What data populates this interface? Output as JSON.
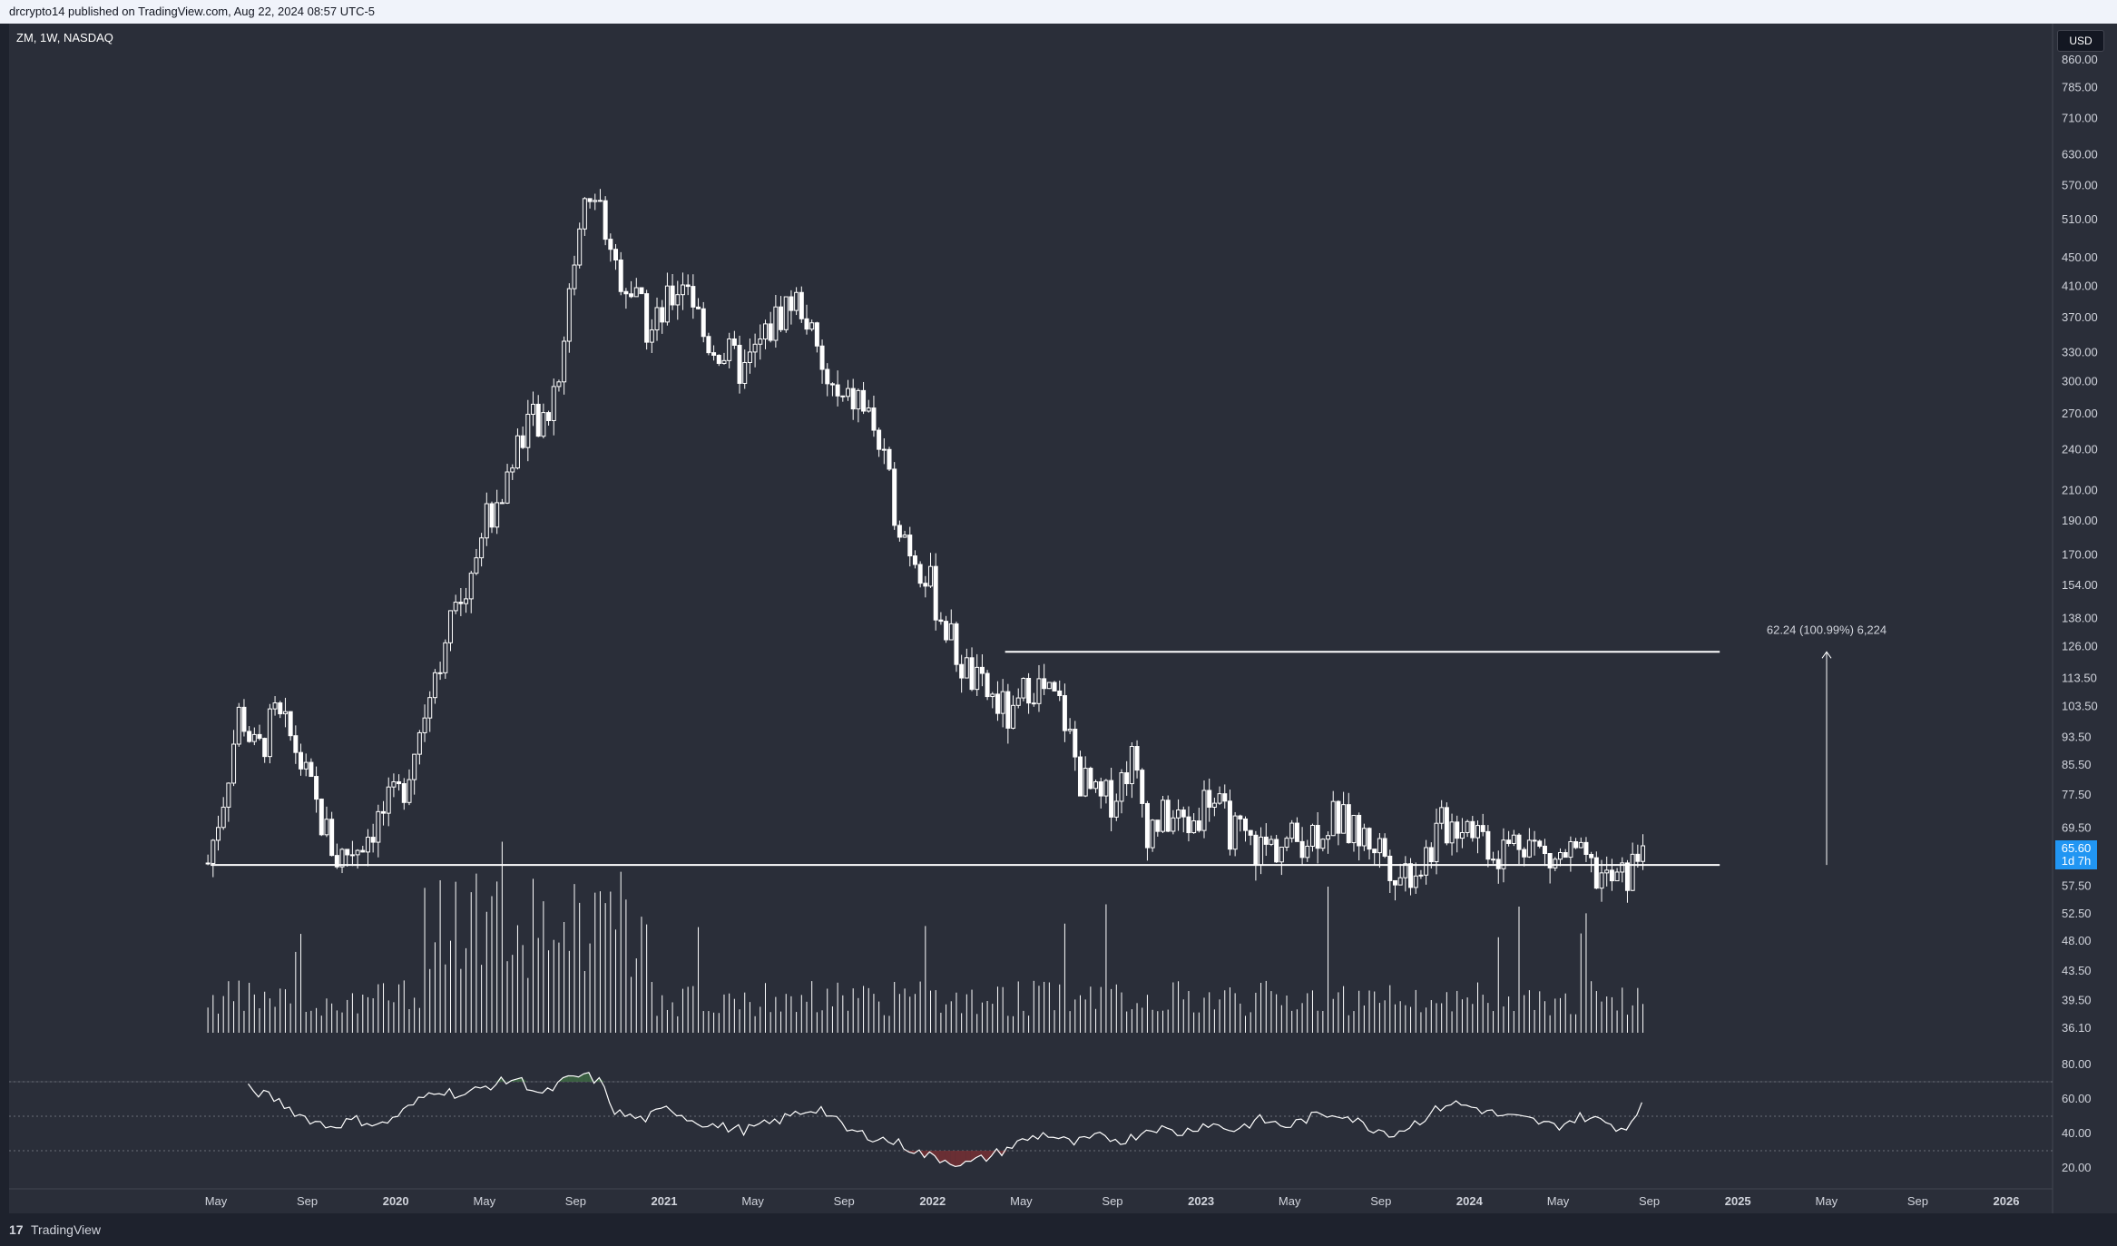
{
  "header": {
    "published_text": "drcrypto14 published on TradingView.com, Aug 22, 2024 08:57 UTC-5"
  },
  "symbol": {
    "label": "ZM, 1W, NASDAQ"
  },
  "currency": "USD",
  "footer": {
    "logo": "17",
    "brand": "TradingView"
  },
  "colors": {
    "background": "#2a2e39",
    "candle": "#ffffff",
    "rsi_overbought_fill": "#3e6b43",
    "rsi_oversold_fill": "#7a2f33",
    "price_tag": "#2962ff",
    "accent": "#2196f3"
  },
  "chart_data": {
    "type": "candlestick",
    "symbol": "ZM",
    "interval": "1W",
    "exchange": "NASDAQ",
    "scale": "log",
    "price_axis_ticks": [
      "860.00",
      "785.00",
      "710.00",
      "630.00",
      "570.00",
      "510.00",
      "450.00",
      "410.00",
      "370.00",
      "330.00",
      "300.00",
      "270.00",
      "240.00",
      "210.00",
      "190.00",
      "170.00",
      "154.00",
      "138.00",
      "126.00",
      "113.50",
      "103.50",
      "93.50",
      "85.50",
      "77.50",
      "69.50",
      "57.50",
      "52.50",
      "48.00",
      "43.50",
      "39.50",
      "36.10"
    ],
    "time_axis_ticks": [
      "May",
      "Sep",
      "2020",
      "May",
      "Sep",
      "2021",
      "May",
      "Sep",
      "2022",
      "May",
      "Sep",
      "2023",
      "May",
      "Sep",
      "2024",
      "May",
      "Sep",
      "2025",
      "May",
      "Sep",
      "2026"
    ],
    "time_axis_dates": [
      2019.33,
      2019.67,
      2020.0,
      2020.33,
      2020.67,
      2021.0,
      2021.33,
      2021.67,
      2022.0,
      2022.33,
      2022.67,
      2023.0,
      2023.33,
      2023.67,
      2024.0,
      2024.33,
      2024.67,
      2025.0,
      2025.33,
      2025.67,
      2026.0
    ],
    "last_price": {
      "value": "65.60",
      "countdown": "1d 7h"
    },
    "price_path": [
      [
        2019.3,
        62
      ],
      [
        2019.36,
        78
      ],
      [
        2019.42,
        103
      ],
      [
        2019.48,
        88
      ],
      [
        2019.55,
        100
      ],
      [
        2019.62,
        92
      ],
      [
        2019.7,
        75
      ],
      [
        2019.78,
        63
      ],
      [
        2019.86,
        66
      ],
      [
        2019.94,
        72
      ],
      [
        2020.02,
        78
      ],
      [
        2020.1,
        100
      ],
      [
        2020.17,
        125
      ],
      [
        2020.25,
        150
      ],
      [
        2020.33,
        190
      ],
      [
        2020.4,
        210
      ],
      [
        2020.48,
        265
      ],
      [
        2020.55,
        255
      ],
      [
        2020.62,
        330
      ],
      [
        2020.67,
        470
      ],
      [
        2020.72,
        560
      ],
      [
        2020.76,
        530
      ],
      [
        2020.82,
        440
      ],
      [
        2020.88,
        400
      ],
      [
        2020.95,
        350
      ],
      [
        2021.02,
        390
      ],
      [
        2021.08,
        430
      ],
      [
        2021.15,
        345
      ],
      [
        2021.22,
        330
      ],
      [
        2021.3,
        310
      ],
      [
        2021.38,
        350
      ],
      [
        2021.46,
        390
      ],
      [
        2021.52,
        385
      ],
      [
        2021.58,
        310
      ],
      [
        2021.66,
        275
      ],
      [
        2021.72,
        285
      ],
      [
        2021.78,
        260
      ],
      [
        2021.84,
        210
      ],
      [
        2021.9,
        180
      ],
      [
        2021.97,
        162
      ],
      [
        2022.03,
        140
      ],
      [
        2022.1,
        120
      ],
      [
        2022.17,
        110
      ],
      [
        2022.24,
        105
      ],
      [
        2022.3,
        98
      ],
      [
        2022.36,
        113
      ],
      [
        2022.42,
        108
      ],
      [
        2022.48,
        103
      ],
      [
        2022.55,
        82
      ],
      [
        2022.62,
        75
      ],
      [
        2022.68,
        78
      ],
      [
        2022.74,
        88
      ],
      [
        2022.8,
        70
      ],
      [
        2022.88,
        72
      ],
      [
        2022.96,
        70
      ],
      [
        2023.03,
        78
      ],
      [
        2023.1,
        70
      ],
      [
        2023.2,
        65
      ],
      [
        2023.3,
        66
      ],
      [
        2023.4,
        68
      ],
      [
        2023.5,
        72
      ],
      [
        2023.58,
        68
      ],
      [
        2023.66,
        66
      ],
      [
        2023.74,
        60
      ],
      [
        2023.82,
        62
      ],
      [
        2023.9,
        70
      ],
      [
        2024.0,
        72
      ],
      [
        2024.1,
        64
      ],
      [
        2024.2,
        68
      ],
      [
        2024.3,
        62
      ],
      [
        2024.38,
        64
      ],
      [
        2024.46,
        60
      ],
      [
        2024.54,
        58
      ],
      [
        2024.6,
        60
      ],
      [
        2024.64,
        65.6
      ]
    ],
    "support_line": {
      "price": 61.6,
      "start": 2019.31,
      "end": 2025.0
    },
    "resistance_line": {
      "price": 123.8,
      "start": 2022.27,
      "end": 2025.0
    },
    "measure": {
      "label": "62.24 (100.99%) 6,224",
      "change": 62.24,
      "percent": 100.99,
      "ticks": 6224
    },
    "volume_note": "volume bars",
    "rsi": {
      "ticks": [
        "80.00",
        "60.00",
        "40.00",
        "20.00"
      ],
      "levels": [
        70,
        50,
        30
      ],
      "path": [
        [
          2019.45,
          66
        ],
        [
          2019.55,
          60
        ],
        [
          2019.65,
          50
        ],
        [
          2019.75,
          44
        ],
        [
          2019.85,
          48
        ],
        [
          2019.95,
          45
        ],
        [
          2020.05,
          55
        ],
        [
          2020.15,
          66
        ],
        [
          2020.25,
          62
        ],
        [
          2020.35,
          68
        ],
        [
          2020.45,
          72
        ],
        [
          2020.55,
          62
        ],
        [
          2020.62,
          70
        ],
        [
          2020.7,
          74
        ],
        [
          2020.76,
          70
        ],
        [
          2020.82,
          52
        ],
        [
          2020.92,
          48
        ],
        [
          2021.02,
          55
        ],
        [
          2021.1,
          48
        ],
        [
          2021.2,
          44
        ],
        [
          2021.3,
          42
        ],
        [
          2021.4,
          46
        ],
        [
          2021.5,
          52
        ],
        [
          2021.58,
          55
        ],
        [
          2021.68,
          42
        ],
        [
          2021.78,
          38
        ],
        [
          2021.88,
          34
        ],
        [
          2021.96,
          28
        ],
        [
          2022.04,
          25
        ],
        [
          2022.12,
          22
        ],
        [
          2022.2,
          26
        ],
        [
          2022.26,
          30
        ],
        [
          2022.34,
          36
        ],
        [
          2022.42,
          40
        ],
        [
          2022.52,
          34
        ],
        [
          2022.62,
          38
        ],
        [
          2022.72,
          36
        ],
        [
          2022.82,
          44
        ],
        [
          2022.92,
          40
        ],
        [
          2023.02,
          46
        ],
        [
          2023.12,
          42
        ],
        [
          2023.22,
          48
        ],
        [
          2023.32,
          44
        ],
        [
          2023.42,
          50
        ],
        [
          2023.52,
          52
        ],
        [
          2023.62,
          44
        ],
        [
          2023.72,
          40
        ],
        [
          2023.82,
          48
        ],
        [
          2023.92,
          58
        ],
        [
          2024.02,
          55
        ],
        [
          2024.12,
          50
        ],
        [
          2024.22,
          48
        ],
        [
          2024.32,
          44
        ],
        [
          2024.42,
          50
        ],
        [
          2024.52,
          46
        ],
        [
          2024.58,
          42
        ],
        [
          2024.64,
          58
        ]
      ]
    }
  }
}
